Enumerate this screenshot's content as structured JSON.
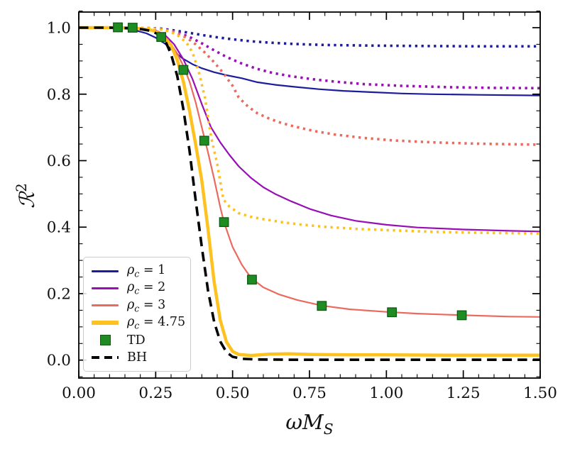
{
  "figure": {
    "background": "#ffffff"
  },
  "colors": {
    "navy": "#1c1c9c",
    "purple": "#980fb6",
    "salmon": "#eb6a5e",
    "gold": "#fdc21f",
    "green_fill": "#1f8b23",
    "green_edge": "#0d5c12",
    "black": "#000000",
    "legend_border": "#cccccc"
  },
  "chart_data": {
    "type": "line",
    "title": "",
    "xlabel": {
      "omega": "ω",
      "m": "M",
      "sub": "S"
    },
    "ylabel": {
      "r": "ℛ",
      "sup": "2"
    },
    "xlim": [
      0,
      1.5
    ],
    "ylim": [
      -0.054,
      1.047
    ],
    "grid": false,
    "legend_position": "lower-left",
    "xticks": [
      0,
      0.25,
      0.5,
      0.75,
      1.0,
      1.25,
      1.5
    ],
    "xtick_labels": [
      "0.00",
      "0.25",
      "0.50",
      "0.75",
      "1.00",
      "1.25",
      "1.50"
    ],
    "yticks": [
      0,
      0.2,
      0.4,
      0.6,
      0.8,
      1.0
    ],
    "ytick_labels": [
      "0.0",
      "0.2",
      "0.4",
      "0.6",
      "0.8",
      "1.0"
    ],
    "x_minor_step": 0.05,
    "y_minor_step": 0.05,
    "series": [
      {
        "name": "rho_c_1_solid",
        "legend": "ρc = 1",
        "color": "#1c1c9c",
        "style": "solid",
        "width": 2.2,
        "points": [
          [
            0,
            1
          ],
          [
            0.06,
            1
          ],
          [
            0.1,
            0.999
          ],
          [
            0.14,
            0.998
          ],
          [
            0.18,
            0.993
          ],
          [
            0.22,
            0.983
          ],
          [
            0.25,
            0.97
          ],
          [
            0.28,
            0.952
          ],
          [
            0.31,
            0.928
          ],
          [
            0.34,
            0.906
          ],
          [
            0.37,
            0.89
          ],
          [
            0.4,
            0.878
          ],
          [
            0.44,
            0.866
          ],
          [
            0.48,
            0.857
          ],
          [
            0.53,
            0.848
          ],
          [
            0.58,
            0.836
          ],
          [
            0.64,
            0.828
          ],
          [
            0.7,
            0.822
          ],
          [
            0.78,
            0.815
          ],
          [
            0.86,
            0.81
          ],
          [
            0.95,
            0.806
          ],
          [
            1.05,
            0.802
          ],
          [
            1.15,
            0.8
          ],
          [
            1.3,
            0.798
          ],
          [
            1.5,
            0.796
          ]
        ]
      },
      {
        "name": "rho_c_2_solid",
        "legend": "ρc = 2",
        "color": "#980fb6",
        "style": "solid",
        "width": 2.2,
        "points": [
          [
            0,
            1
          ],
          [
            0.12,
            1
          ],
          [
            0.18,
            0.999
          ],
          [
            0.22,
            0.996
          ],
          [
            0.25,
            0.992
          ],
          [
            0.28,
            0.978
          ],
          [
            0.31,
            0.95
          ],
          [
            0.34,
            0.905
          ],
          [
            0.37,
            0.845
          ],
          [
            0.4,
            0.77
          ],
          [
            0.43,
            0.7
          ],
          [
            0.46,
            0.655
          ],
          [
            0.49,
            0.617
          ],
          [
            0.52,
            0.583
          ],
          [
            0.56,
            0.548
          ],
          [
            0.6,
            0.52
          ],
          [
            0.64,
            0.499
          ],
          [
            0.69,
            0.478
          ],
          [
            0.75,
            0.455
          ],
          [
            0.82,
            0.435
          ],
          [
            0.9,
            0.419
          ],
          [
            1.0,
            0.407
          ],
          [
            1.1,
            0.399
          ],
          [
            1.25,
            0.393
          ],
          [
            1.4,
            0.389
          ],
          [
            1.5,
            0.387
          ]
        ]
      },
      {
        "name": "rho_c_3_solid",
        "legend": "ρc = 3",
        "color": "#eb6a5e",
        "style": "solid",
        "width": 2.2,
        "points": [
          [
            0,
            1
          ],
          [
            0.12,
            1
          ],
          [
            0.18,
            0.999
          ],
          [
            0.22,
            0.996
          ],
          [
            0.26,
            0.988
          ],
          [
            0.29,
            0.964
          ],
          [
            0.32,
            0.922
          ],
          [
            0.34,
            0.885
          ],
          [
            0.36,
            0.838
          ],
          [
            0.38,
            0.775
          ],
          [
            0.4,
            0.7
          ],
          [
            0.42,
            0.625
          ],
          [
            0.44,
            0.545
          ],
          [
            0.46,
            0.46
          ],
          [
            0.472,
            0.415
          ],
          [
            0.5,
            0.34
          ],
          [
            0.53,
            0.287
          ],
          [
            0.56,
            0.247
          ],
          [
            0.6,
            0.219
          ],
          [
            0.65,
            0.198
          ],
          [
            0.71,
            0.181
          ],
          [
            0.79,
            0.164
          ],
          [
            0.88,
            0.153
          ],
          [
            1.0,
            0.145
          ],
          [
            1.1,
            0.14
          ],
          [
            1.25,
            0.135
          ],
          [
            1.4,
            0.131
          ],
          [
            1.5,
            0.13
          ]
        ]
      },
      {
        "name": "rho_c_1_dotted",
        "color": "#1c1c9c",
        "style": "dotted",
        "width": 3.6,
        "points": [
          [
            0,
            1
          ],
          [
            0.16,
            1
          ],
          [
            0.22,
            0.999
          ],
          [
            0.26,
            0.998
          ],
          [
            0.3,
            0.993
          ],
          [
            0.35,
            0.986
          ],
          [
            0.4,
            0.978
          ],
          [
            0.45,
            0.971
          ],
          [
            0.5,
            0.965
          ],
          [
            0.56,
            0.959
          ],
          [
            0.62,
            0.955
          ],
          [
            0.7,
            0.951
          ],
          [
            0.8,
            0.948
          ],
          [
            0.95,
            0.946
          ],
          [
            1.1,
            0.945
          ],
          [
            1.3,
            0.944
          ],
          [
            1.5,
            0.944
          ]
        ]
      },
      {
        "name": "rho_c_2_dotted",
        "color": "#980fb6",
        "style": "dotted",
        "width": 3.6,
        "points": [
          [
            0,
            1
          ],
          [
            0.18,
            1
          ],
          [
            0.24,
            0.998
          ],
          [
            0.28,
            0.994
          ],
          [
            0.32,
            0.986
          ],
          [
            0.36,
            0.972
          ],
          [
            0.4,
            0.953
          ],
          [
            0.44,
            0.932
          ],
          [
            0.48,
            0.912
          ],
          [
            0.53,
            0.892
          ],
          [
            0.58,
            0.876
          ],
          [
            0.63,
            0.864
          ],
          [
            0.69,
            0.854
          ],
          [
            0.76,
            0.845
          ],
          [
            0.84,
            0.837
          ],
          [
            0.93,
            0.83
          ],
          [
            1.05,
            0.825
          ],
          [
            1.2,
            0.821
          ],
          [
            1.35,
            0.819
          ],
          [
            1.5,
            0.818
          ]
        ]
      },
      {
        "name": "rho_c_3_dotted",
        "color": "#eb6a5e",
        "style": "dotted",
        "width": 3.6,
        "points": [
          [
            0,
            1
          ],
          [
            0.18,
            1
          ],
          [
            0.23,
            0.999
          ],
          [
            0.27,
            0.995
          ],
          [
            0.31,
            0.988
          ],
          [
            0.35,
            0.97
          ],
          [
            0.38,
            0.95
          ],
          [
            0.41,
            0.925
          ],
          [
            0.44,
            0.896
          ],
          [
            0.47,
            0.863
          ],
          [
            0.5,
            0.825
          ],
          [
            0.52,
            0.79
          ],
          [
            0.55,
            0.763
          ],
          [
            0.58,
            0.743
          ],
          [
            0.62,
            0.726
          ],
          [
            0.66,
            0.713
          ],
          [
            0.7,
            0.703
          ],
          [
            0.76,
            0.69
          ],
          [
            0.83,
            0.679
          ],
          [
            0.92,
            0.669
          ],
          [
            1.02,
            0.661
          ],
          [
            1.15,
            0.655
          ],
          [
            1.3,
            0.651
          ],
          [
            1.5,
            0.648
          ]
        ]
      },
      {
        "name": "rho_c_475_dotted",
        "color": "#fdc21f",
        "style": "dotted",
        "width": 3.6,
        "points": [
          [
            0,
            1
          ],
          [
            0.18,
            1
          ],
          [
            0.23,
            0.999
          ],
          [
            0.26,
            0.996
          ],
          [
            0.29,
            0.99
          ],
          [
            0.32,
            0.978
          ],
          [
            0.35,
            0.955
          ],
          [
            0.37,
            0.925
          ],
          [
            0.39,
            0.868
          ],
          [
            0.41,
            0.79
          ],
          [
            0.43,
            0.672
          ],
          [
            0.45,
            0.59
          ],
          [
            0.47,
            0.483
          ],
          [
            0.49,
            0.462
          ],
          [
            0.52,
            0.442
          ],
          [
            0.56,
            0.431
          ],
          [
            0.6,
            0.424
          ],
          [
            0.66,
            0.415
          ],
          [
            0.72,
            0.408
          ],
          [
            0.8,
            0.401
          ],
          [
            0.9,
            0.395
          ],
          [
            1.0,
            0.391
          ],
          [
            1.15,
            0.386
          ],
          [
            1.3,
            0.383
          ],
          [
            1.5,
            0.381
          ]
        ]
      },
      {
        "name": "rho_c_475_solid",
        "legend": "ρc = 4.75",
        "color": "#fdc21f",
        "style": "solid",
        "width": 4.5,
        "points": [
          [
            0,
            1
          ],
          [
            0.1,
            1
          ],
          [
            0.16,
            0.999
          ],
          [
            0.2,
            0.997
          ],
          [
            0.24,
            0.992
          ],
          [
            0.27,
            0.978
          ],
          [
            0.3,
            0.947
          ],
          [
            0.32,
            0.903
          ],
          [
            0.34,
            0.838
          ],
          [
            0.36,
            0.75
          ],
          [
            0.38,
            0.648
          ],
          [
            0.4,
            0.54
          ],
          [
            0.42,
            0.395
          ],
          [
            0.44,
            0.235
          ],
          [
            0.46,
            0.12
          ],
          [
            0.48,
            0.055
          ],
          [
            0.5,
            0.026
          ],
          [
            0.52,
            0.017
          ],
          [
            0.56,
            0.014
          ],
          [
            0.62,
            0.018
          ],
          [
            0.68,
            0.019
          ],
          [
            0.76,
            0.017
          ],
          [
            0.88,
            0.016
          ],
          [
            1.0,
            0.016
          ],
          [
            1.2,
            0.015
          ],
          [
            1.5,
            0.015
          ]
        ]
      },
      {
        "name": "BH",
        "legend": "BH",
        "color": "#000000",
        "style": "dashed",
        "width": 3.6,
        "points": [
          [
            0,
            1
          ],
          [
            0.1,
            1
          ],
          [
            0.16,
            0.999
          ],
          [
            0.2,
            0.996
          ],
          [
            0.23,
            0.991
          ],
          [
            0.26,
            0.98
          ],
          [
            0.28,
            0.963
          ],
          [
            0.3,
            0.92
          ],
          [
            0.32,
            0.855
          ],
          [
            0.34,
            0.755
          ],
          [
            0.36,
            0.63
          ],
          [
            0.38,
            0.48
          ],
          [
            0.4,
            0.34
          ],
          [
            0.42,
            0.21
          ],
          [
            0.44,
            0.115
          ],
          [
            0.46,
            0.056
          ],
          [
            0.48,
            0.024
          ],
          [
            0.5,
            0.01
          ],
          [
            0.53,
            0.004
          ],
          [
            0.58,
            0.002
          ],
          [
            0.7,
            0.001
          ],
          [
            0.9,
            0.001
          ],
          [
            1.2,
            0.001
          ],
          [
            1.5,
            0.001
          ]
        ]
      }
    ],
    "scatter": {
      "name": "TD",
      "legend": "TD",
      "marker": "square",
      "size": 12.5,
      "fill": "#1f8b23",
      "edge": "#0d5c12",
      "points": [
        [
          0.127,
          1.001
        ],
        [
          0.175,
          1.0
        ],
        [
          0.268,
          0.972
        ],
        [
          0.34,
          0.873
        ],
        [
          0.408,
          0.66
        ],
        [
          0.472,
          0.415
        ],
        [
          0.563,
          0.242
        ],
        [
          0.79,
          0.163
        ],
        [
          1.018,
          0.144
        ],
        [
          1.245,
          0.135
        ]
      ]
    }
  },
  "legend": {
    "items": [
      {
        "pre": "ρ",
        "sub": "c",
        "post": " = 1",
        "swatch": "line",
        "color": "#1c1c9c",
        "thickness": 3
      },
      {
        "pre": "ρ",
        "sub": "c",
        "post": " = 2",
        "swatch": "line",
        "color": "#980fb6",
        "thickness": 3
      },
      {
        "pre": "ρ",
        "sub": "c",
        "post": " = 3",
        "swatch": "line",
        "color": "#eb6a5e",
        "thickness": 3
      },
      {
        "pre": "ρ",
        "sub": "c",
        "post": " = 4.75",
        "swatch": "line",
        "color": "#fdc21f",
        "thickness": 6
      },
      {
        "pre": "TD",
        "sub": "",
        "post": "",
        "swatch": "square",
        "color": "#1f8b23",
        "edge": "#0d5c12"
      },
      {
        "pre": "BH",
        "sub": "",
        "post": "",
        "swatch": "dash",
        "color": "#000000"
      }
    ]
  }
}
